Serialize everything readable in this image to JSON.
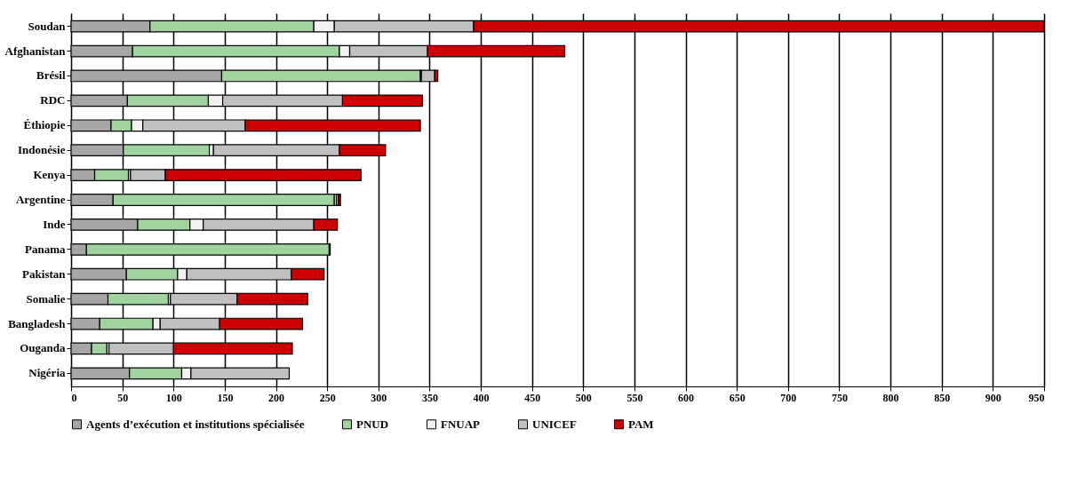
{
  "chart_data": {
    "type": "bar",
    "orientation": "horizontal",
    "stacked": true,
    "grid": "x",
    "legend": "bottom",
    "categories": [
      "Soudan",
      "Afghanistan",
      "Brésil",
      "RDC",
      "Éthiopie",
      "Indonésie",
      "Kenya",
      "Argentine",
      "Inde",
      "Panama",
      "Pakistan",
      "Somalie",
      "Bangladesh",
      "Ouganda",
      "Nigéria"
    ],
    "xlim": [
      0,
      950
    ],
    "xticks": [
      0,
      50,
      100,
      150,
      200,
      250,
      300,
      350,
      400,
      450,
      500,
      550,
      600,
      650,
      700,
      750,
      800,
      850,
      900,
      950
    ],
    "series": [
      {
        "name": "Agents d’exécution et institutions spécialisée",
        "color": "#a6a6a6",
        "values": [
          77,
          60,
          147,
          55,
          39,
          51,
          23,
          41,
          65,
          15,
          54,
          36,
          28,
          20,
          57
        ]
      },
      {
        "name": "PNUD",
        "color": "#9fd49f",
        "values": [
          160,
          202,
          194,
          79,
          20,
          84,
          33,
          216,
          51,
          237,
          50,
          59,
          52,
          15,
          51
        ]
      },
      {
        "name": "FNUAP",
        "color": "#f2f2f2",
        "values": [
          20,
          10,
          1,
          14,
          11,
          4,
          2,
          2,
          13,
          0,
          9,
          2,
          7,
          2,
          9
        ]
      },
      {
        "name": "UNICEF",
        "color": "#c0c0c0",
        "values": [
          136,
          76,
          13,
          117,
          100,
          123,
          34,
          2,
          108,
          0,
          102,
          65,
          58,
          63,
          96
        ]
      },
      {
        "name": "PAM",
        "color": "#cc0000",
        "values": [
          557,
          134,
          3,
          78,
          171,
          45,
          191,
          2,
          23,
          1,
          32,
          69,
          81,
          116,
          0
        ]
      }
    ]
  }
}
